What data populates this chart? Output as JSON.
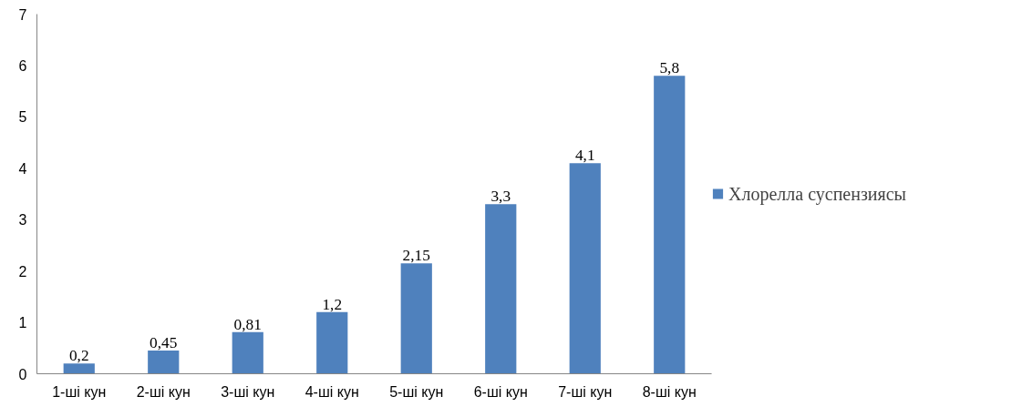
{
  "chart_data": {
    "type": "bar",
    "categories": [
      "1-ші кун",
      "2-ші кун",
      "3-ші кун",
      "4-ші кун",
      "5-ші кун",
      "6-ші кун",
      "7-ші кун",
      "8-ші кун"
    ],
    "series": [
      {
        "name": "Хлорелла суспензиясы",
        "color": "#4f81bd",
        "values": [
          0.2,
          0.45,
          0.81,
          1.2,
          2.15,
          3.3,
          4.1,
          5.8
        ]
      }
    ],
    "value_labels": [
      "0,2",
      "0,45",
      "0,81",
      "1,2",
      "2,15",
      "3,3",
      "4,1",
      "5,8"
    ],
    "ylim": [
      0,
      7
    ],
    "yticks": [
      0,
      1,
      2,
      3,
      4,
      5,
      6,
      7
    ],
    "grid": false,
    "legend": "right"
  }
}
